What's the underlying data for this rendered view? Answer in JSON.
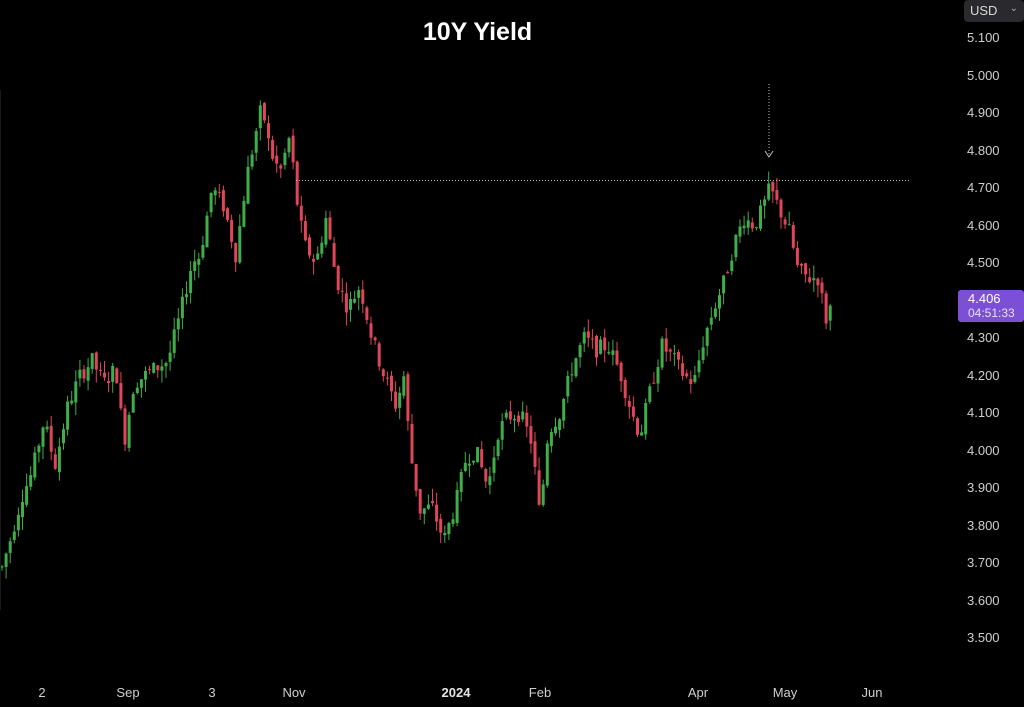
{
  "currency_selector": {
    "label": "USD",
    "icon": "chevron-down-icon"
  },
  "price_tag": {
    "price": "4.406",
    "countdown": "04:51:33",
    "color": "#7b4fd6"
  },
  "colors": {
    "up": "#3fae4a",
    "down": "#e0455a",
    "background": "#000000",
    "annotation": "#bdbdbd"
  },
  "chart_data": {
    "type": "candlestick",
    "title": "10Y Yield",
    "ylim": [
      3.45,
      5.15
    ],
    "yticks": [
      "5.100",
      "5.000",
      "4.900",
      "4.800",
      "4.700",
      "4.600",
      "4.500",
      "4.400",
      "4.300",
      "4.200",
      "4.100",
      "4.000",
      "3.900",
      "3.800",
      "3.700",
      "3.600",
      "3.500"
    ],
    "xtick_labels": [
      {
        "label": "2",
        "bold": false
      },
      {
        "label": "Sep",
        "bold": false
      },
      {
        "label": "3",
        "bold": false
      },
      {
        "label": "Nov",
        "bold": false
      },
      {
        "label": "2024",
        "bold": true
      },
      {
        "label": "Feb",
        "bold": false
      },
      {
        "label": "Apr",
        "bold": false
      },
      {
        "label": "May",
        "bold": false
      },
      {
        "label": "Jun",
        "bold": false
      }
    ],
    "grid": false,
    "resistance_level": 4.72,
    "series": [
      {
        "name": "",
        "key_points": [
          [
            0,
            3.67
          ],
          [
            10,
            3.76
          ],
          [
            22,
            3.88
          ],
          [
            32,
            3.94
          ],
          [
            44,
            4.08
          ],
          [
            55,
            3.96
          ],
          [
            68,
            4.12
          ],
          [
            80,
            4.2
          ],
          [
            92,
            4.24
          ],
          [
            104,
            4.18
          ],
          [
            116,
            4.22
          ],
          [
            124,
            4.02
          ],
          [
            134,
            4.18
          ],
          [
            150,
            4.21
          ],
          [
            168,
            4.24
          ],
          [
            180,
            4.36
          ],
          [
            192,
            4.5
          ],
          [
            200,
            4.52
          ],
          [
            212,
            4.7
          ],
          [
            224,
            4.65
          ],
          [
            236,
            4.52
          ],
          [
            246,
            4.72
          ],
          [
            256,
            4.85
          ],
          [
            262,
            4.92
          ],
          [
            270,
            4.8
          ],
          [
            280,
            4.74
          ],
          [
            290,
            4.84
          ],
          [
            296,
            4.68
          ],
          [
            304,
            4.55
          ],
          [
            316,
            4.5
          ],
          [
            326,
            4.62
          ],
          [
            336,
            4.46
          ],
          [
            348,
            4.38
          ],
          [
            360,
            4.44
          ],
          [
            372,
            4.3
          ],
          [
            384,
            4.2
          ],
          [
            396,
            4.12
          ],
          [
            404,
            4.2
          ],
          [
            410,
            4.0
          ],
          [
            420,
            3.84
          ],
          [
            432,
            3.85
          ],
          [
            444,
            3.76
          ],
          [
            456,
            3.86
          ],
          [
            466,
            3.98
          ],
          [
            476,
            4.0
          ],
          [
            488,
            3.9
          ],
          [
            498,
            4.05
          ],
          [
            508,
            4.09
          ],
          [
            520,
            4.1
          ],
          [
            532,
            4.02
          ],
          [
            540,
            3.82
          ],
          [
            548,
            4.05
          ],
          [
            560,
            4.1
          ],
          [
            572,
            4.22
          ],
          [
            584,
            4.3
          ],
          [
            596,
            4.27
          ],
          [
            608,
            4.28
          ],
          [
            620,
            4.21
          ],
          [
            632,
            4.1
          ],
          [
            640,
            4.04
          ],
          [
            652,
            4.18
          ],
          [
            662,
            4.28
          ],
          [
            672,
            4.25
          ],
          [
            684,
            4.2
          ],
          [
            694,
            4.18
          ],
          [
            704,
            4.3
          ],
          [
            714,
            4.38
          ],
          [
            724,
            4.45
          ],
          [
            734,
            4.55
          ],
          [
            744,
            4.62
          ],
          [
            754,
            4.6
          ],
          [
            762,
            4.64
          ],
          [
            770,
            4.7
          ],
          [
            780,
            4.64
          ],
          [
            790,
            4.58
          ],
          [
            798,
            4.48
          ],
          [
            808,
            4.46
          ],
          [
            818,
            4.46
          ],
          [
            826,
            4.35
          ],
          [
            834,
            4.41
          ]
        ]
      }
    ]
  }
}
